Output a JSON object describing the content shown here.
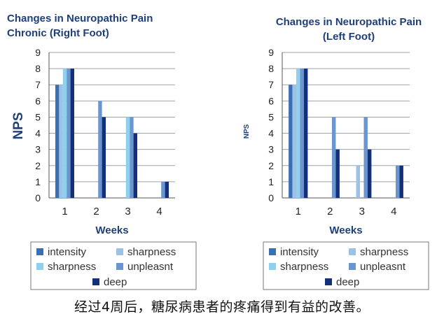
{
  "caption": "经过4周后，糖尿病患者的疼痛得到有益的改善。",
  "chart_data": [
    {
      "type": "bar",
      "title_lines": [
        "Changes in Neuropathic Pain",
        "Chronic (Right Foot)"
      ],
      "xlabel": "Weeks",
      "ylabel": "NPS",
      "ylim": [
        0,
        9
      ],
      "yticks": [
        "0",
        "1",
        "2",
        "3",
        "4",
        "5",
        "6",
        "7",
        "8",
        "9"
      ],
      "grid": true,
      "legend_placement": "bottom",
      "categories": [
        "1",
        "2",
        "3",
        "4"
      ],
      "series": [
        {
          "name": "intensity",
          "color": "#3a6fb3",
          "values": [
            7,
            0,
            0,
            0
          ]
        },
        {
          "name": "sharpness",
          "color": "#9cc3e6",
          "values": [
            7,
            0,
            0,
            0
          ]
        },
        {
          "name": "sharpness",
          "color": "#8fd0ee",
          "values": [
            8,
            0,
            5,
            0
          ]
        },
        {
          "name": "unpleasnt",
          "color": "#6b95cf",
          "values": [
            8,
            6,
            5,
            1
          ]
        },
        {
          "name": "deep",
          "color": "#15307a",
          "values": [
            8,
            5,
            4,
            1
          ]
        }
      ]
    },
    {
      "type": "bar",
      "title_lines": [
        "Changes in Neuropathic Pain",
        "(Left Foot)"
      ],
      "xlabel": "Weeks",
      "ylabel": "NPS",
      "ylim": [
        0,
        9
      ],
      "yticks": [
        "0",
        "1",
        "2",
        "3",
        "4",
        "5",
        "6",
        "7",
        "8",
        "9"
      ],
      "grid": true,
      "legend_placement": "bottom",
      "categories": [
        "1",
        "2",
        "3",
        "4"
      ],
      "series": [
        {
          "name": "intensity",
          "color": "#3a6fb3",
          "values": [
            7,
            0,
            0,
            0
          ]
        },
        {
          "name": "sharpness",
          "color": "#9cc3e6",
          "values": [
            7,
            0,
            2,
            0
          ]
        },
        {
          "name": "sharpness",
          "color": "#8fd0ee",
          "values": [
            8,
            0,
            0,
            0
          ]
        },
        {
          "name": "unpleasnt",
          "color": "#6b95cf",
          "values": [
            8,
            5,
            5,
            2
          ]
        },
        {
          "name": "deep",
          "color": "#15307a",
          "values": [
            8,
            3,
            3,
            2
          ]
        }
      ]
    }
  ]
}
